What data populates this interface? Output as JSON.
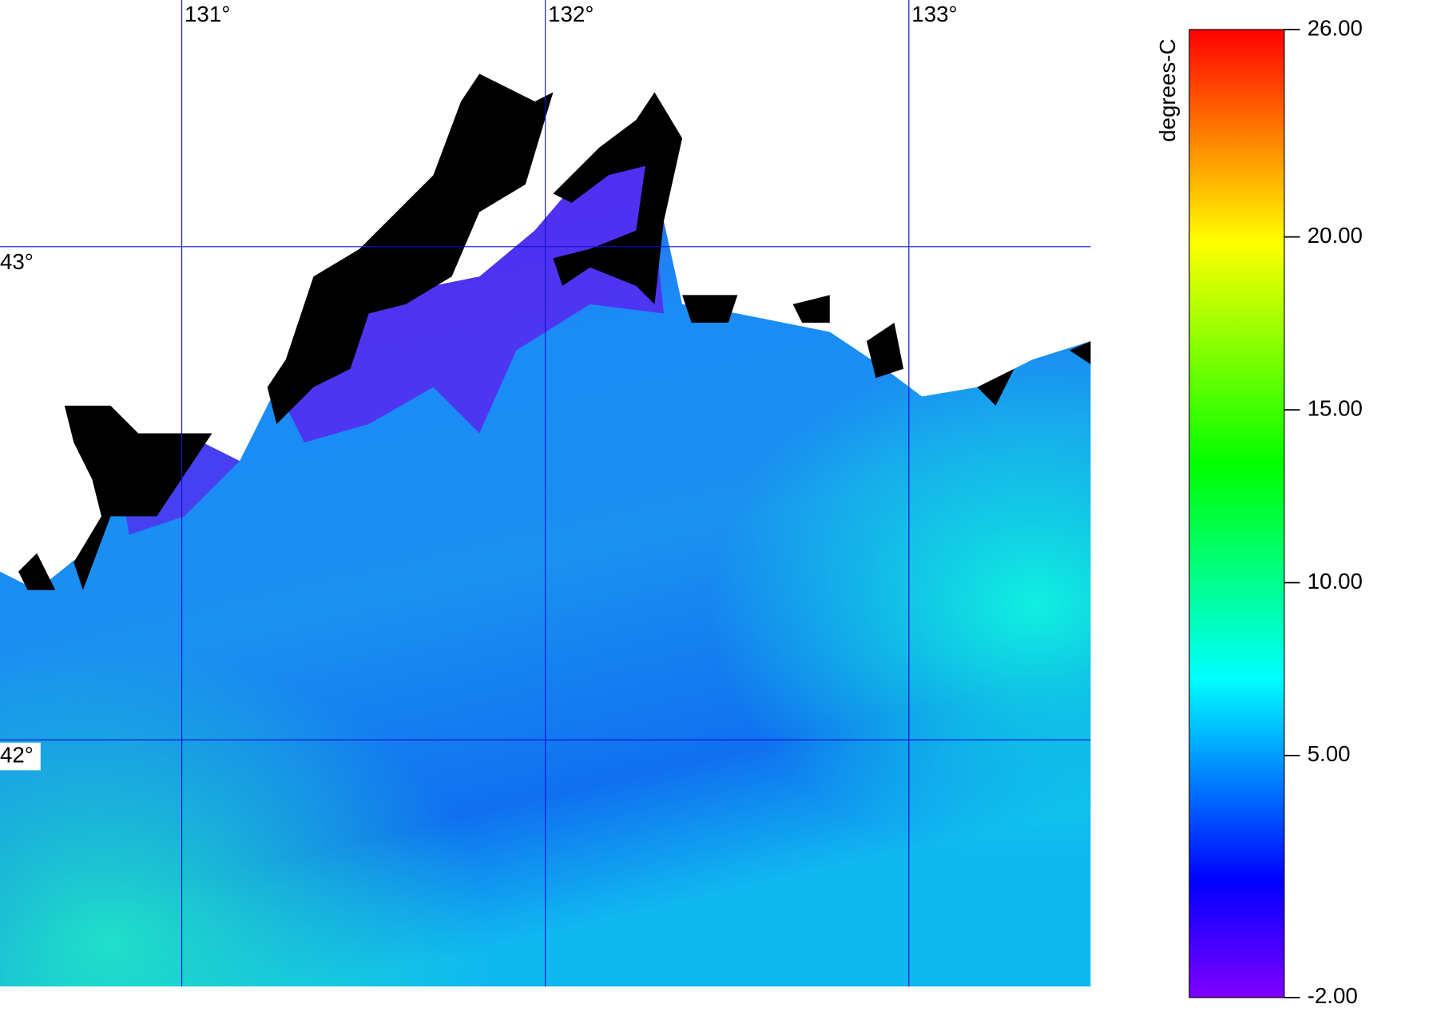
{
  "chart_data": {
    "type": "map",
    "xlim": [
      130.5,
      133.5
    ],
    "ylim": [
      41.5,
      43.5
    ],
    "xticks": [
      {
        "value": 131,
        "label": "131°"
      },
      {
        "value": 132,
        "label": "132°"
      },
      {
        "value": 133,
        "label": "133°"
      }
    ],
    "yticks": [
      {
        "value": 43,
        "label": "43°"
      },
      {
        "value": 42,
        "label": "42°"
      }
    ],
    "colorbar": {
      "title": "degrees-C",
      "lim": [
        -2,
        26
      ],
      "ticks": [
        {
          "value": 26,
          "label": "26.00"
        },
        {
          "value": 20,
          "label": "20.00"
        },
        {
          "value": 15,
          "label": "15.00"
        },
        {
          "value": 10,
          "label": "10.00"
        },
        {
          "value": 5,
          "label": "5.00"
        },
        {
          "value": -2,
          "label": "-2.00"
        }
      ]
    }
  }
}
